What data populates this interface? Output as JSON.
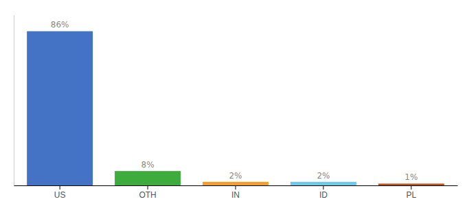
{
  "chart_data": {
    "type": "bar",
    "categories": [
      "US",
      "OTH",
      "IN",
      "ID",
      "PL"
    ],
    "values": [
      86,
      8,
      2,
      2,
      1
    ],
    "value_labels": [
      "86%",
      "8%",
      "2%",
      "2%",
      "1%"
    ],
    "colors": [
      "#4472c4",
      "#3dac3d",
      "#f0a030",
      "#70c8e8",
      "#c05020"
    ],
    "ylim": [
      0,
      95
    ],
    "data_labels": true,
    "tick_labels": "x",
    "grid": false
  }
}
